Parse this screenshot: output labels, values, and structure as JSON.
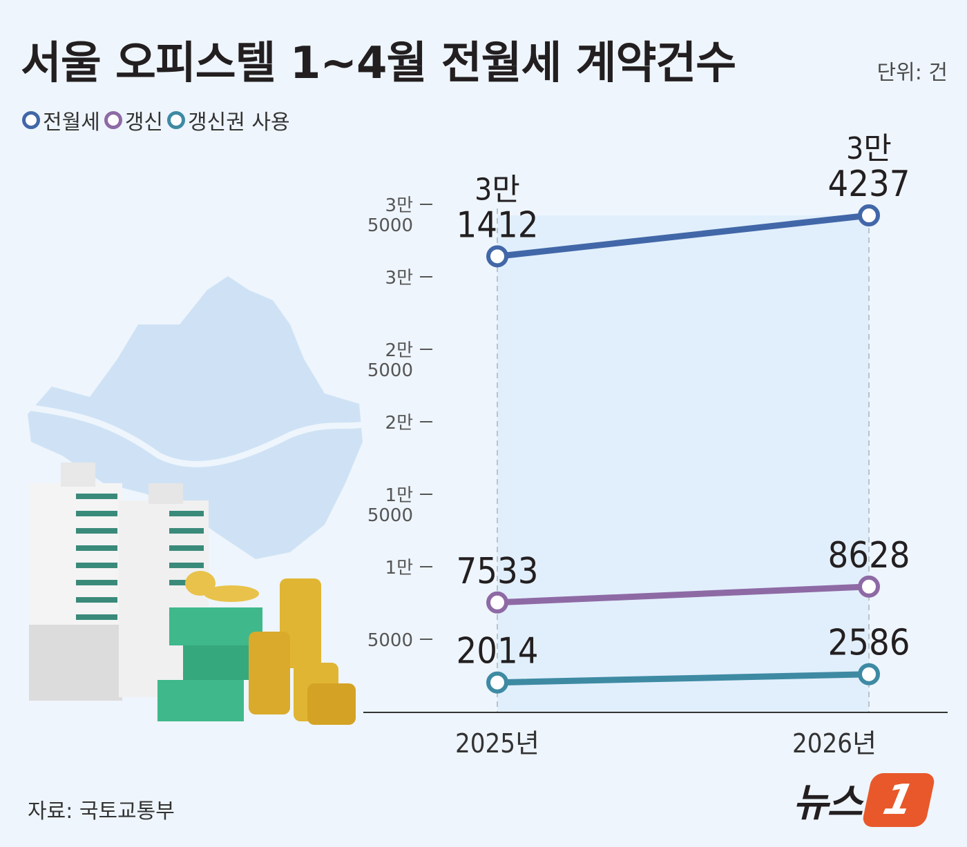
{
  "title": "서울 오피스텔 1~4월 전월세 계약건수",
  "unit_label": "단위: 건",
  "source": "자료: 국토교통부",
  "logo": {
    "text": "뉴스",
    "badge": "1"
  },
  "legend": [
    {
      "label": "전월세",
      "color": "#4267a8"
    },
    {
      "label": "갱신",
      "color": "#8e6aa5"
    },
    {
      "label": "갱신권 사용",
      "color": "#3e8aa3"
    }
  ],
  "chart_data": {
    "type": "line",
    "categories": [
      "2025년",
      "2026년"
    ],
    "series": [
      {
        "name": "전월세",
        "values": [
          31412,
          34237
        ],
        "labels": [
          [
            "3만",
            "1412"
          ],
          [
            "3만",
            "4237"
          ]
        ],
        "color": "#4267a8"
      },
      {
        "name": "갱신",
        "values": [
          7533,
          8628
        ],
        "labels": [
          [
            "7533"
          ],
          [
            "8628"
          ]
        ],
        "color": "#8e6aa5"
      },
      {
        "name": "갱신권 사용",
        "values": [
          2014,
          2586
        ],
        "labels": [
          [
            "2014"
          ],
          [
            "2586"
          ]
        ],
        "color": "#3e8aa3"
      }
    ],
    "y_ticks": [
      {
        "value": 5000,
        "label": [
          "5000"
        ]
      },
      {
        "value": 10000,
        "label": [
          "1만"
        ]
      },
      {
        "value": 15000,
        "label": [
          "1만",
          "5000"
        ]
      },
      {
        "value": 20000,
        "label": [
          "2만"
        ]
      },
      {
        "value": 25000,
        "label": [
          "2만",
          "5000"
        ]
      },
      {
        "value": 30000,
        "label": [
          "3만"
        ]
      },
      {
        "value": 35000,
        "label": [
          "3만",
          "5000"
        ]
      }
    ],
    "ylim": [
      0,
      35000
    ],
    "grid": false,
    "legend_position": "top-left"
  }
}
